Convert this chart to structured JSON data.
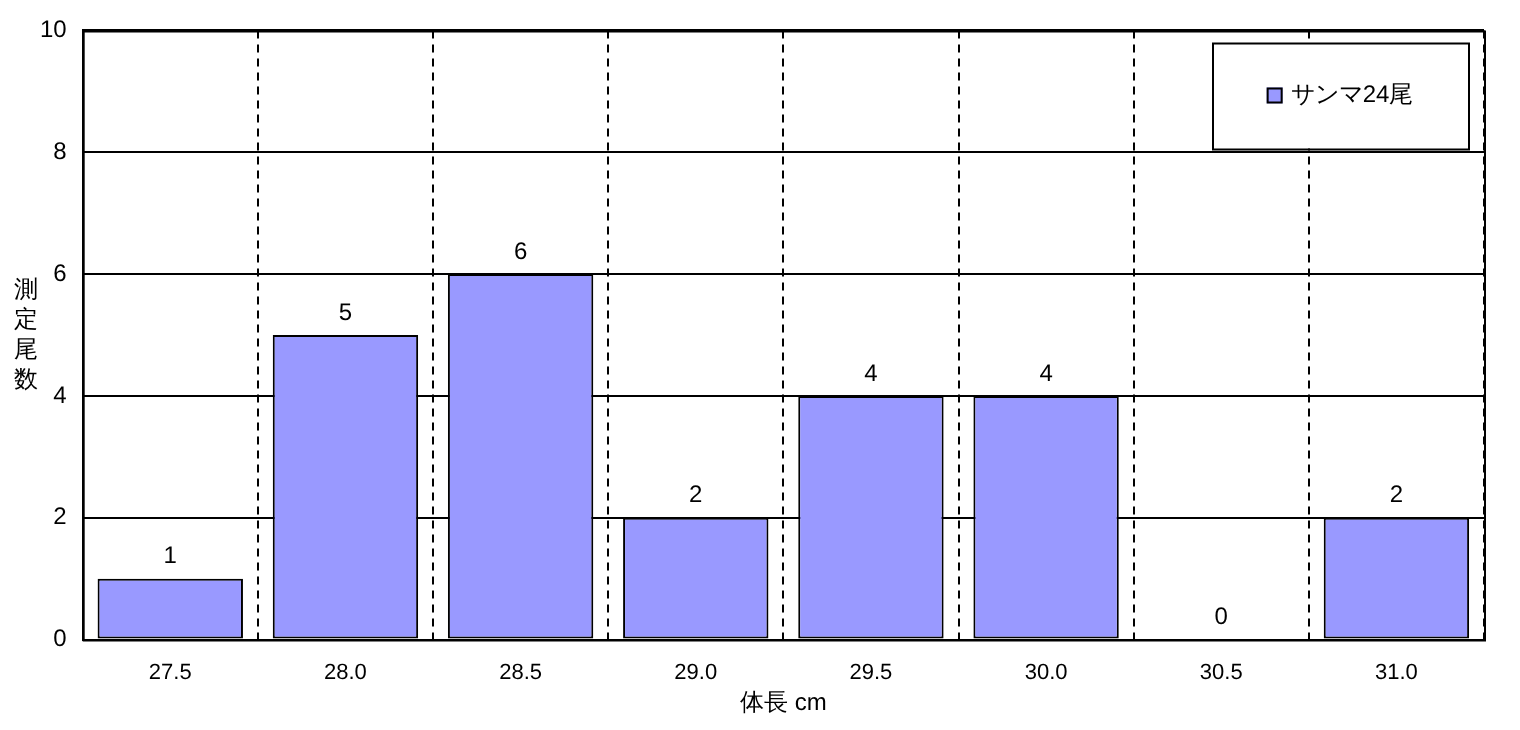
{
  "chart_data": {
    "type": "bar",
    "xlabel": "体長 cm",
    "ylabel": "測定尾数",
    "categories": [
      "27.5",
      "28.0",
      "28.5",
      "29.0",
      "29.5",
      "30.0",
      "30.5",
      "31.0"
    ],
    "series": [
      {
        "name": "サンマ24尾",
        "color": "#9999ff",
        "values": [
          1,
          5,
          6,
          2,
          4,
          4,
          0,
          2
        ]
      }
    ],
    "ylim": [
      0,
      10
    ],
    "yticks": [
      0,
      2,
      4,
      6,
      8,
      10
    ],
    "grid": true,
    "legend": "top right",
    "data_labels": true
  }
}
